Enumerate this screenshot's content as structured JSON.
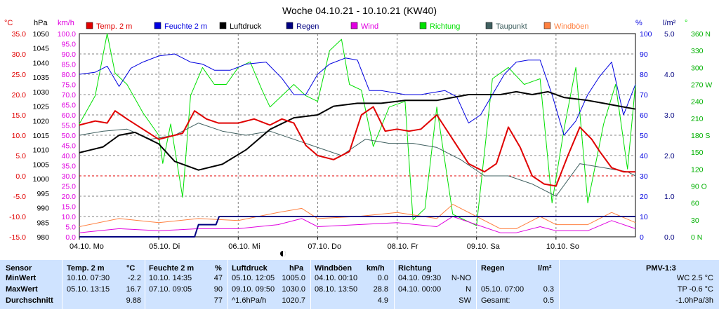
{
  "title": "Woche 04.10.21 - 10.10.21 (KW40)",
  "axes": {
    "left_units": [
      "°C",
      "hPa",
      "km/h"
    ],
    "right_units": [
      "%",
      "l/m²",
      "°"
    ],
    "temp_ticks": [
      "35.0",
      "30.0",
      "25.0",
      "20.0",
      "15.0",
      "10.0",
      "5.0",
      "0.0",
      "-5.0",
      "-10.0",
      "-15.0"
    ],
    "hpa_ticks": [
      "1050",
      "1045",
      "1040",
      "1035",
      "1030",
      "1025",
      "1020",
      "1015",
      "1010",
      "1005",
      "1000",
      "995",
      "990",
      "985",
      "980"
    ],
    "kmh_ticks": [
      "100.0",
      "95.0",
      "90.0",
      "85.0",
      "80.0",
      "75.0",
      "70.0",
      "65.0",
      "60.0",
      "55.0",
      "50.0",
      "45.0",
      "40.0",
      "35.0",
      "30.0",
      "25.0",
      "20.0",
      "15.0",
      "10.0",
      "5.0",
      "0.0"
    ],
    "pct_ticks": [
      "100",
      "90",
      "80",
      "70",
      "60",
      "50",
      "40",
      "30",
      "20",
      "10",
      "0"
    ],
    "rain_ticks": [
      "5.0",
      "4.0",
      "3.0",
      "2.0",
      "1.0",
      "0.0"
    ],
    "dir_ticks": [
      "360 N",
      "330",
      "300",
      "270 W",
      "240",
      "210",
      "180 S",
      "150",
      "120",
      "90 O",
      "60",
      "30",
      "0 N"
    ],
    "day_labels": [
      "04.10.  Mo",
      "05.10.  Di",
      "06.10.  Mi",
      "07.10.  Do",
      "08.10.  Fr",
      "09.10.  Sa",
      "10.10.  So"
    ]
  },
  "legend": [
    {
      "name": "Temp. 2 m",
      "color": "#e00000"
    },
    {
      "name": "Feuchte  2 m",
      "color": "#0000e0"
    },
    {
      "name": "Luftdruck",
      "color": "#000000"
    },
    {
      "name": "Regen",
      "color": "#000080"
    },
    {
      "name": "Wind",
      "color": "#e000e0"
    },
    {
      "name": "Richtung",
      "color": "#00e000"
    },
    {
      "name": "Taupunkt",
      "color": "#406060"
    },
    {
      "name": "Windböen",
      "color": "#ff8040"
    }
  ],
  "stats": {
    "headers": {
      "sensor": "Sensor",
      "temp": "Temp. 2 m",
      "temp_unit": "°C",
      "hum": "Feuchte  2 m",
      "hum_unit": "%",
      "press": "Luftdruck",
      "press_unit": "hPa",
      "gust": "Windböen",
      "gust_unit": "km/h",
      "dir": "Richtung",
      "rain": "Regen",
      "rain_unit": "l/m²",
      "pmv": "PMV-1:3"
    },
    "rows": [
      {
        "label": "MinWert",
        "temp_time": "10.10.  07:30",
        "temp_val": "-2.2",
        "hum_time": "10.10.  14:35",
        "hum_val": "47",
        "press_time": "05.10.  12:05",
        "press_val": "1005.0",
        "gust_time": "04.10.  00:10",
        "gust_val": "0.0",
        "dir_time": "04.10.  09:30",
        "dir_val": "N-NO",
        "rain_time": "",
        "rain_val": "",
        "pmv": "WC 2.5 °C"
      },
      {
        "label": "MaxWert",
        "temp_time": "05.10.  13:15",
        "temp_val": "16.7",
        "hum_time": "07.10.  09:05",
        "hum_val": "90",
        "press_time": "09.10.  09:50",
        "press_val": "1030.0",
        "gust_time": "08.10.  13:50",
        "gust_val": "28.8",
        "dir_time": "04.10.  00:00",
        "dir_val": "N",
        "rain_time": "05.10.  07:00",
        "rain_val": "0.3",
        "pmv": "TP -0.6 °C"
      },
      {
        "label": "Durchschnitt",
        "temp_time": "",
        "temp_val": "9.88",
        "hum_time": "",
        "hum_val": "77",
        "press_time": "^1.6hPa/h",
        "press_val": "1020.7",
        "gust_time": "",
        "gust_val": "4.9",
        "dir_time": "",
        "dir_val": "SW",
        "rain_time": "Gesamt:",
        "rain_val": "0.5",
        "pmv": "-1.0hPa/3h"
      }
    ]
  },
  "chart_data": {
    "type": "line",
    "title": "Woche 04.10.21 - 10.10.21 (KW40)",
    "x_unit": "day",
    "x_range": [
      0,
      7
    ],
    "categories": [
      "04.10.  Mo",
      "05.10.  Di",
      "06.10.  Mi",
      "07.10.  Do",
      "08.10.  Fr",
      "09.10.  Sa",
      "10.10.  So"
    ],
    "series": [
      {
        "name": "Temp. 2 m",
        "unit": "°C",
        "axis": "temp",
        "color": "#e00000",
        "x": [
          0,
          0.2,
          0.35,
          0.45,
          0.6,
          0.8,
          1.0,
          1.1,
          1.3,
          1.45,
          1.6,
          1.75,
          2.0,
          2.2,
          2.4,
          2.55,
          2.7,
          2.85,
          3.0,
          3.2,
          3.4,
          3.55,
          3.7,
          3.85,
          4.0,
          4.15,
          4.3,
          4.5,
          4.7,
          4.9,
          5.1,
          5.25,
          5.4,
          5.55,
          5.7,
          5.85,
          6.0,
          6.15,
          6.3,
          6.45,
          6.55,
          6.7,
          6.85,
          7.0
        ],
        "y": [
          12.5,
          13.5,
          13,
          16,
          14,
          11.5,
          9,
          9.5,
          10.5,
          16,
          14,
          13,
          13,
          14,
          12.5,
          14,
          13,
          7.5,
          5,
          4,
          6,
          15,
          17,
          11,
          11.5,
          11,
          11.5,
          15,
          9,
          3,
          1,
          3,
          12,
          7,
          0,
          -2,
          -2.5,
          5,
          12,
          9,
          6,
          2,
          1,
          1
        ]
      },
      {
        "name": "Feuchte  2 m",
        "unit": "%",
        "axis": "pct",
        "color": "#0000e0",
        "x": [
          0,
          0.2,
          0.35,
          0.5,
          0.65,
          0.8,
          1.0,
          1.2,
          1.4,
          1.55,
          1.7,
          1.9,
          2.1,
          2.35,
          2.55,
          2.7,
          2.85,
          3.0,
          3.15,
          3.35,
          3.5,
          3.65,
          3.8,
          3.95,
          4.1,
          4.3,
          4.45,
          4.6,
          4.75,
          4.9,
          5.05,
          5.2,
          5.35,
          5.5,
          5.65,
          5.8,
          5.95,
          6.1,
          6.25,
          6.4,
          6.55,
          6.7,
          6.85,
          7.0
        ],
        "y": [
          80,
          81,
          84,
          74,
          83,
          86,
          89,
          90,
          86,
          85,
          82,
          82,
          85,
          86,
          78,
          70,
          70,
          80,
          85,
          88,
          87,
          72,
          72,
          71,
          70,
          70,
          71,
          72,
          69,
          56,
          60,
          70,
          80,
          86,
          87,
          87,
          70,
          50,
          57,
          70,
          79,
          86,
          60,
          75
        ]
      },
      {
        "name": "Luftdruck",
        "unit": "hPa",
        "axis": "hpa",
        "color": "#000000",
        "x": [
          0,
          0.3,
          0.5,
          0.7,
          1.0,
          1.2,
          1.5,
          1.8,
          2.1,
          2.4,
          2.7,
          3.0,
          3.2,
          3.5,
          3.8,
          4.1,
          4.3,
          4.5,
          4.7,
          4.9,
          5.1,
          5.3,
          5.5,
          5.7,
          5.9,
          6.1,
          6.4,
          6.6,
          6.8,
          7.0
        ],
        "y": [
          1009,
          1011,
          1015,
          1016,
          1012,
          1006,
          1003,
          1005,
          1010,
          1017,
          1021,
          1022,
          1025,
          1026,
          1026,
          1027,
          1027,
          1027,
          1028,
          1029,
          1029,
          1029,
          1030,
          1029,
          1030,
          1028,
          1027,
          1026,
          1025,
          1024
        ]
      },
      {
        "name": "Regen",
        "unit": "l/m²",
        "axis": "rain",
        "color": "#000080",
        "x": [
          0,
          1.45,
          1.5,
          1.72,
          1.76,
          7.0
        ],
        "y": [
          0,
          0,
          0.3,
          0.3,
          0.5,
          0.5
        ]
      },
      {
        "name": "Wind",
        "unit": "km/h",
        "axis": "kmh",
        "color": "#e000e0",
        "x": [
          0,
          0.5,
          1.0,
          1.5,
          2.0,
          2.5,
          2.8,
          3.0,
          3.5,
          4.0,
          4.5,
          4.7,
          5.0,
          5.3,
          5.5,
          5.8,
          6.0,
          6.4,
          6.7,
          7.0
        ],
        "y": [
          2,
          4,
          3,
          4,
          4,
          6,
          9,
          5,
          6,
          7,
          5,
          10,
          6,
          2,
          2,
          5,
          3,
          3,
          8,
          4
        ]
      },
      {
        "name": "Richtung",
        "unit": "°",
        "axis": "dir",
        "color": "#00e000",
        "x": [
          0,
          0.2,
          0.35,
          0.45,
          0.6,
          0.8,
          1.0,
          1.05,
          1.15,
          1.3,
          1.4,
          1.55,
          1.7,
          1.85,
          2.0,
          2.15,
          2.3,
          2.4,
          2.55,
          2.7,
          2.85,
          3.0,
          3.15,
          3.3,
          3.4,
          3.55,
          3.7,
          3.9,
          4.1,
          4.2,
          4.35,
          4.5,
          4.7,
          4.85,
          5.0,
          5.2,
          5.4,
          5.6,
          5.8,
          5.95,
          6.1,
          6.25,
          6.4,
          6.6,
          6.75,
          6.9,
          7.0
        ],
        "y": [
          200,
          250,
          360,
          290,
          270,
          220,
          180,
          130,
          200,
          70,
          250,
          300,
          270,
          270,
          300,
          310,
          260,
          230,
          250,
          270,
          250,
          240,
          330,
          350,
          270,
          260,
          160,
          230,
          240,
          30,
          50,
          230,
          40,
          30,
          20,
          280,
          300,
          270,
          280,
          60,
          190,
          300,
          60,
          200,
          270,
          120,
          270
        ]
      },
      {
        "name": "Taupunkt",
        "unit": "°C",
        "axis": "temp",
        "color": "#406060",
        "x": [
          0,
          0.3,
          0.6,
          0.9,
          1.2,
          1.5,
          1.8,
          2.1,
          2.4,
          2.7,
          3.0,
          3.3,
          3.6,
          3.9,
          4.2,
          4.5,
          4.8,
          5.1,
          5.4,
          5.7,
          6.0,
          6.3,
          6.6,
          6.9,
          7.0
        ],
        "y": [
          10,
          11,
          11.5,
          9,
          10,
          13,
          11,
          10,
          11,
          9,
          7,
          5,
          9,
          8,
          8,
          7,
          4,
          0,
          0,
          -2,
          -5,
          3,
          2,
          1,
          0
        ]
      },
      {
        "name": "Windböen",
        "unit": "km/h",
        "axis": "kmh",
        "color": "#ff8040",
        "x": [
          0,
          0.5,
          1.0,
          1.5,
          2.0,
          2.5,
          2.8,
          3.0,
          3.5,
          4.0,
          4.5,
          4.7,
          5.0,
          5.3,
          5.5,
          5.8,
          6.0,
          6.4,
          6.7,
          7.0
        ],
        "y": [
          5,
          9,
          7,
          9,
          8,
          12,
          14,
          9,
          10,
          12,
          9,
          16,
          10,
          4,
          4,
          10,
          6,
          6,
          12,
          7
        ]
      }
    ]
  }
}
